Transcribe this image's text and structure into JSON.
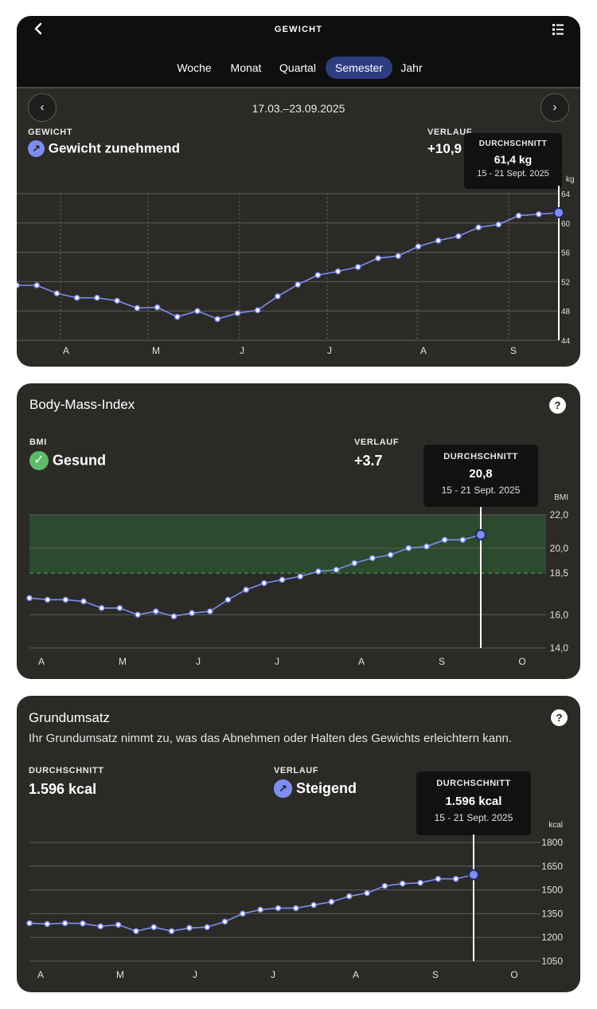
{
  "weight": {
    "header_title": "GEWICHT",
    "tabs": [
      {
        "label": "Woche",
        "active": false
      },
      {
        "label": "Monat",
        "active": false
      },
      {
        "label": "Quartal",
        "active": false
      },
      {
        "label": "Semester",
        "active": true
      },
      {
        "label": "Jahr",
        "active": false
      }
    ],
    "date_range": "17.03.–23.09.2025",
    "stat_label": "GEWICHT",
    "stat_value": "Gewicht zunehmend",
    "trend_label": "VERLAUF",
    "trend_value": "+10,9",
    "tooltip": {
      "label": "DURCHSCHNITT",
      "value": "61,4 kg",
      "date": "15 - 21 Sept. 2025"
    },
    "unit": "kg"
  },
  "bmi": {
    "title": "Body-Mass-Index",
    "stat_label": "BMI",
    "stat_value": "Gesund",
    "trend_label": "VERLAUF",
    "trend_value": "+3.7",
    "tooltip": {
      "label": "DURCHSCHNITT",
      "value": "20,8",
      "date": "15 - 21 Sept. 2025"
    },
    "unit": "BMI"
  },
  "bmr": {
    "title": "Grundumsatz",
    "description": "Ihr Grundumsatz nimmt zu, was das Abnehmen oder Halten des Gewichts erleichtern kann.",
    "avg_label": "DURCHSCHNITT",
    "avg_value": "1.596 kcal",
    "trend_label": "VERLAUF",
    "trend_value": "Steigend",
    "tooltip": {
      "label": "DURCHSCHNITT",
      "value": "1.596 kcal",
      "date": "15 - 21 Sept. 2025"
    },
    "unit": "kcal"
  },
  "colors": {
    "line": "#7d8ef0",
    "healthy_band": "#2c4a2e",
    "healthy_dash": "#3e8a4a",
    "card": "#2b2a27"
  },
  "chart_data": [
    {
      "id": "weight",
      "type": "line",
      "title": "GEWICHT",
      "ylabel": "kg",
      "ylim": [
        44,
        64
      ],
      "yticks": [
        "64",
        "60",
        "56",
        "52",
        "48",
        "44"
      ],
      "ytick_values": [
        64,
        60,
        56,
        52,
        48,
        44
      ],
      "xticks": [
        "A",
        "M",
        "J",
        "J",
        "A",
        "S"
      ],
      "values": [
        51.5,
        51.5,
        50.4,
        49.8,
        49.8,
        49.4,
        48.4,
        48.5,
        47.2,
        48.0,
        46.9,
        47.7,
        48.1,
        50.0,
        51.6,
        52.9,
        53.4,
        54.0,
        55.2,
        55.5,
        56.8,
        57.6,
        58.2,
        59.4,
        59.8,
        61.0,
        61.2,
        61.4
      ]
    },
    {
      "id": "bmi",
      "type": "line",
      "title": "Body-Mass-Index",
      "ylabel": "BMI",
      "ylim": [
        14,
        22
      ],
      "yticks": [
        "22,0",
        "20,0",
        "18,5",
        "16,0",
        "14,0"
      ],
      "ytick_values": [
        22,
        20,
        18.5,
        16,
        14
      ],
      "healthy_range": [
        18.5,
        22
      ],
      "xticks": [
        "A",
        "M",
        "J",
        "J",
        "A",
        "S",
        "O"
      ],
      "values": [
        17.0,
        16.9,
        16.9,
        16.8,
        16.4,
        16.4,
        16.0,
        16.2,
        15.9,
        16.1,
        16.2,
        16.9,
        17.5,
        17.9,
        18.1,
        18.3,
        18.6,
        18.7,
        19.1,
        19.4,
        19.6,
        20.0,
        20.1,
        20.5,
        20.5,
        20.8
      ]
    },
    {
      "id": "bmr",
      "type": "line",
      "title": "Grundumsatz",
      "ylabel": "kcal",
      "ylim": [
        1050,
        1800
      ],
      "yticks": [
        "1800",
        "1650",
        "1500",
        "1350",
        "1200",
        "1050"
      ],
      "ytick_values": [
        1800,
        1650,
        1500,
        1350,
        1200,
        1050
      ],
      "xticks": [
        "A",
        "M",
        "J",
        "J",
        "A",
        "S",
        "O"
      ],
      "values": [
        1290,
        1285,
        1290,
        1288,
        1270,
        1280,
        1240,
        1265,
        1240,
        1260,
        1265,
        1300,
        1350,
        1375,
        1385,
        1385,
        1405,
        1425,
        1460,
        1480,
        1525,
        1540,
        1545,
        1570,
        1570,
        1596
      ]
    }
  ]
}
